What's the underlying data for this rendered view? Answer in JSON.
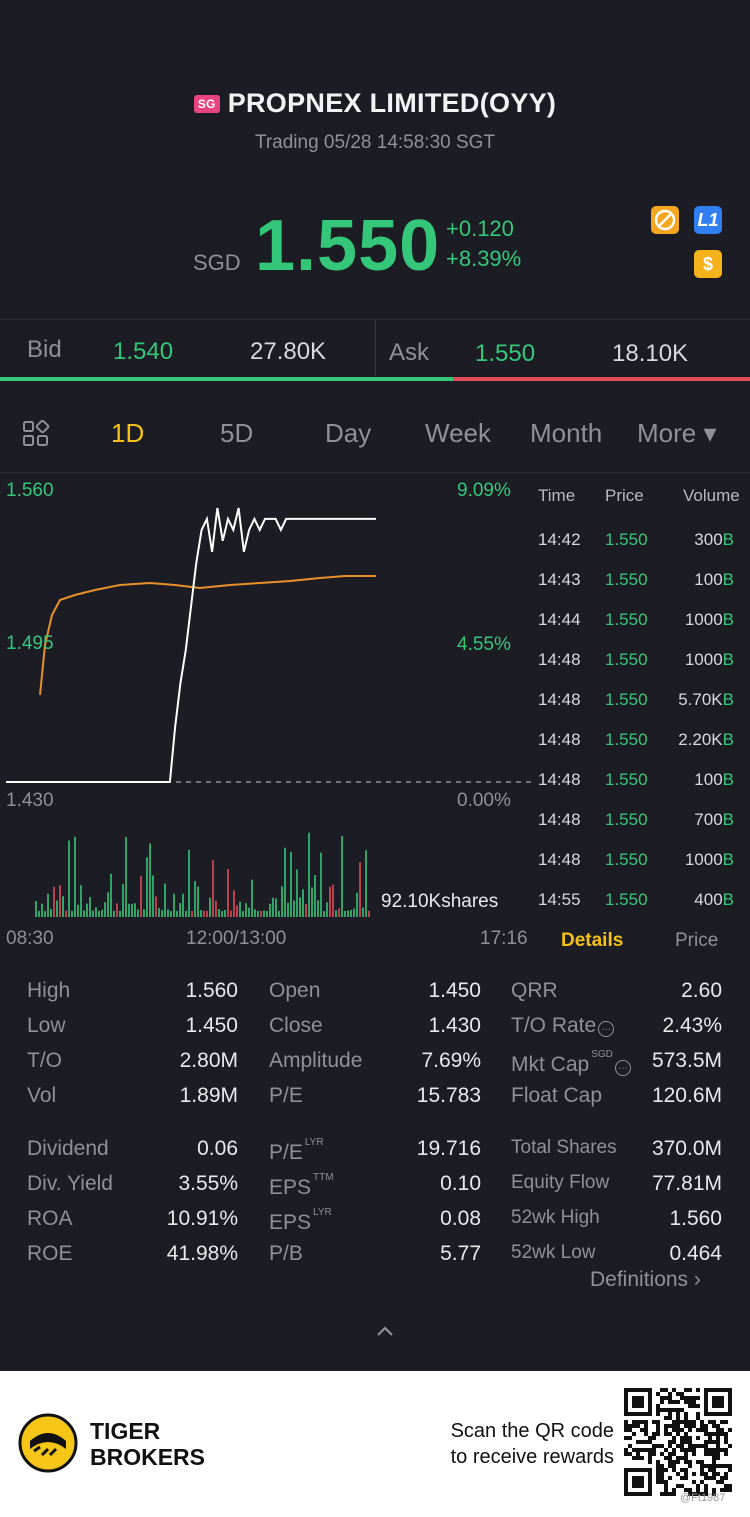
{
  "header": {
    "badge": "SG",
    "title": "PROPNEX LIMITED(OYY)",
    "status": "Trading 05/28 14:58:30 SGT"
  },
  "quote": {
    "currency": "SGD",
    "price": "1.550",
    "change": "+0.120",
    "change_pct": "+8.39%",
    "icons": [
      "no-short-icon",
      "level1-icon",
      "dollar-icon"
    ],
    "l1_label": "L1",
    "dollar_label": "$"
  },
  "bid_ask": {
    "bid_label": "Bid",
    "bid_price": "1.540",
    "bid_size": "27.80K",
    "ask_label": "Ask",
    "ask_price": "1.550",
    "ask_size": "18.10K",
    "bid_share": 0.604
  },
  "tabs": [
    {
      "label": "1D",
      "active": true
    },
    {
      "label": "5D"
    },
    {
      "label": "Day"
    },
    {
      "label": "Week"
    },
    {
      "label": "Month"
    },
    {
      "label": "More ▾"
    }
  ],
  "chart": {
    "y_high": "1.560",
    "y_mid": "1.495",
    "y_low": "1.430",
    "pct_high": "9.09%",
    "pct_mid": "4.55%",
    "pct_low": "0.00%",
    "volume_label": "92.10Kshares",
    "x_start": "08:30",
    "x_mid": "12:00/13:00",
    "x_end": "17:16"
  },
  "chart_data": {
    "type": "line",
    "series": [
      {
        "values": [
          1.43,
          1.43,
          1.43,
          1.43,
          1.43,
          1.43,
          1.43,
          1.43,
          1.43,
          1.43,
          1.43,
          1.43,
          1.43,
          1.43,
          1.43,
          1.43,
          1.43,
          1.43,
          1.43,
          1.43,
          1.43,
          1.43,
          1.43,
          1.43,
          1.43,
          1.43,
          1.43,
          1.43,
          1.43,
          1.43,
          1.43,
          1.43,
          1.455,
          1.475,
          1.49,
          1.51,
          1.53,
          1.545,
          1.55,
          1.535,
          1.555,
          1.54,
          1.55,
          1.545,
          1.555,
          1.535,
          1.545,
          1.55,
          1.545,
          1.55,
          1.55,
          1.55,
          1.545,
          1.55,
          1.55,
          1.55,
          1.55,
          1.55,
          1.55,
          1.55,
          1.55,
          1.55,
          1.55,
          1.55,
          1.55,
          1.55,
          1.55,
          1.55,
          1.55,
          1.55,
          1.55
        ]
      }
    ],
    "ylim": [
      1.43,
      1.56
    ]
  },
  "tape": {
    "headers": [
      "Time",
      "Price",
      "Volume"
    ],
    "rows": [
      {
        "time": "14:42",
        "price": "1.550",
        "vol": "300",
        "flag": "B"
      },
      {
        "time": "14:43",
        "price": "1.550",
        "vol": "100",
        "flag": "B"
      },
      {
        "time": "14:44",
        "price": "1.550",
        "vol": "1000",
        "flag": "B"
      },
      {
        "time": "14:48",
        "price": "1.550",
        "vol": "1000",
        "flag": "B"
      },
      {
        "time": "14:48",
        "price": "1.550",
        "vol": "5.70K",
        "flag": "B"
      },
      {
        "time": "14:48",
        "price": "1.550",
        "vol": "2.20K",
        "flag": "B"
      },
      {
        "time": "14:48",
        "price": "1.550",
        "vol": "100",
        "flag": "B"
      },
      {
        "time": "14:48",
        "price": "1.550",
        "vol": "700",
        "flag": "B"
      },
      {
        "time": "14:48",
        "price": "1.550",
        "vol": "1000",
        "flag": "B"
      },
      {
        "time": "14:55",
        "price": "1.550",
        "vol": "400",
        "flag": "B"
      }
    ],
    "tab_details": "Details",
    "tab_price": "Price"
  },
  "stats": {
    "col1": [
      {
        "label": "High",
        "value": "1.560"
      },
      {
        "label": "Low",
        "value": "1.450"
      },
      {
        "label": "T/O",
        "value": "2.80M"
      },
      {
        "label": "Vol",
        "value": "1.89M"
      },
      {
        "label": "Dividend",
        "value": "0.06"
      },
      {
        "label": "Div. Yield",
        "value": "3.55%"
      },
      {
        "label": "ROA",
        "value": "10.91%"
      },
      {
        "label": "ROE",
        "value": "41.98%"
      }
    ],
    "col2": [
      {
        "label": "Open",
        "value": "1.450"
      },
      {
        "label": "Close",
        "value": "1.430"
      },
      {
        "label": "Amplitude",
        "value": "7.69%"
      },
      {
        "label": "P/E",
        "value": "15.783"
      },
      {
        "label": "P/E",
        "sup": "LYR",
        "value": "19.716"
      },
      {
        "label": "EPS",
        "sup": "TTM",
        "value": "0.10"
      },
      {
        "label": "EPS",
        "sup": "LYR",
        "value": "0.08"
      },
      {
        "label": "P/B",
        "value": "5.77"
      }
    ],
    "col3": [
      {
        "label": "QRR",
        "value": "2.60"
      },
      {
        "label": "T/O Rate",
        "value": "2.43%"
      },
      {
        "label": "Mkt Cap",
        "sup": "SGD",
        "value": "573.5M"
      },
      {
        "label": "Float Cap",
        "value": "120.6M"
      },
      {
        "label": "Total Shares",
        "value": "370.0M"
      },
      {
        "label": "Equity Flow",
        "value": "77.81M"
      },
      {
        "label": "52wk High",
        "value": "1.560"
      },
      {
        "label": "52wk Low",
        "value": "0.464"
      }
    ],
    "definitions": "Definitions"
  },
  "footer": {
    "brand_line1": "TIGER",
    "brand_line2": "BROKERS",
    "scan_line1": "Scan the QR code",
    "scan_line2": "to receive rewards",
    "watermark": "@Ft1987"
  }
}
